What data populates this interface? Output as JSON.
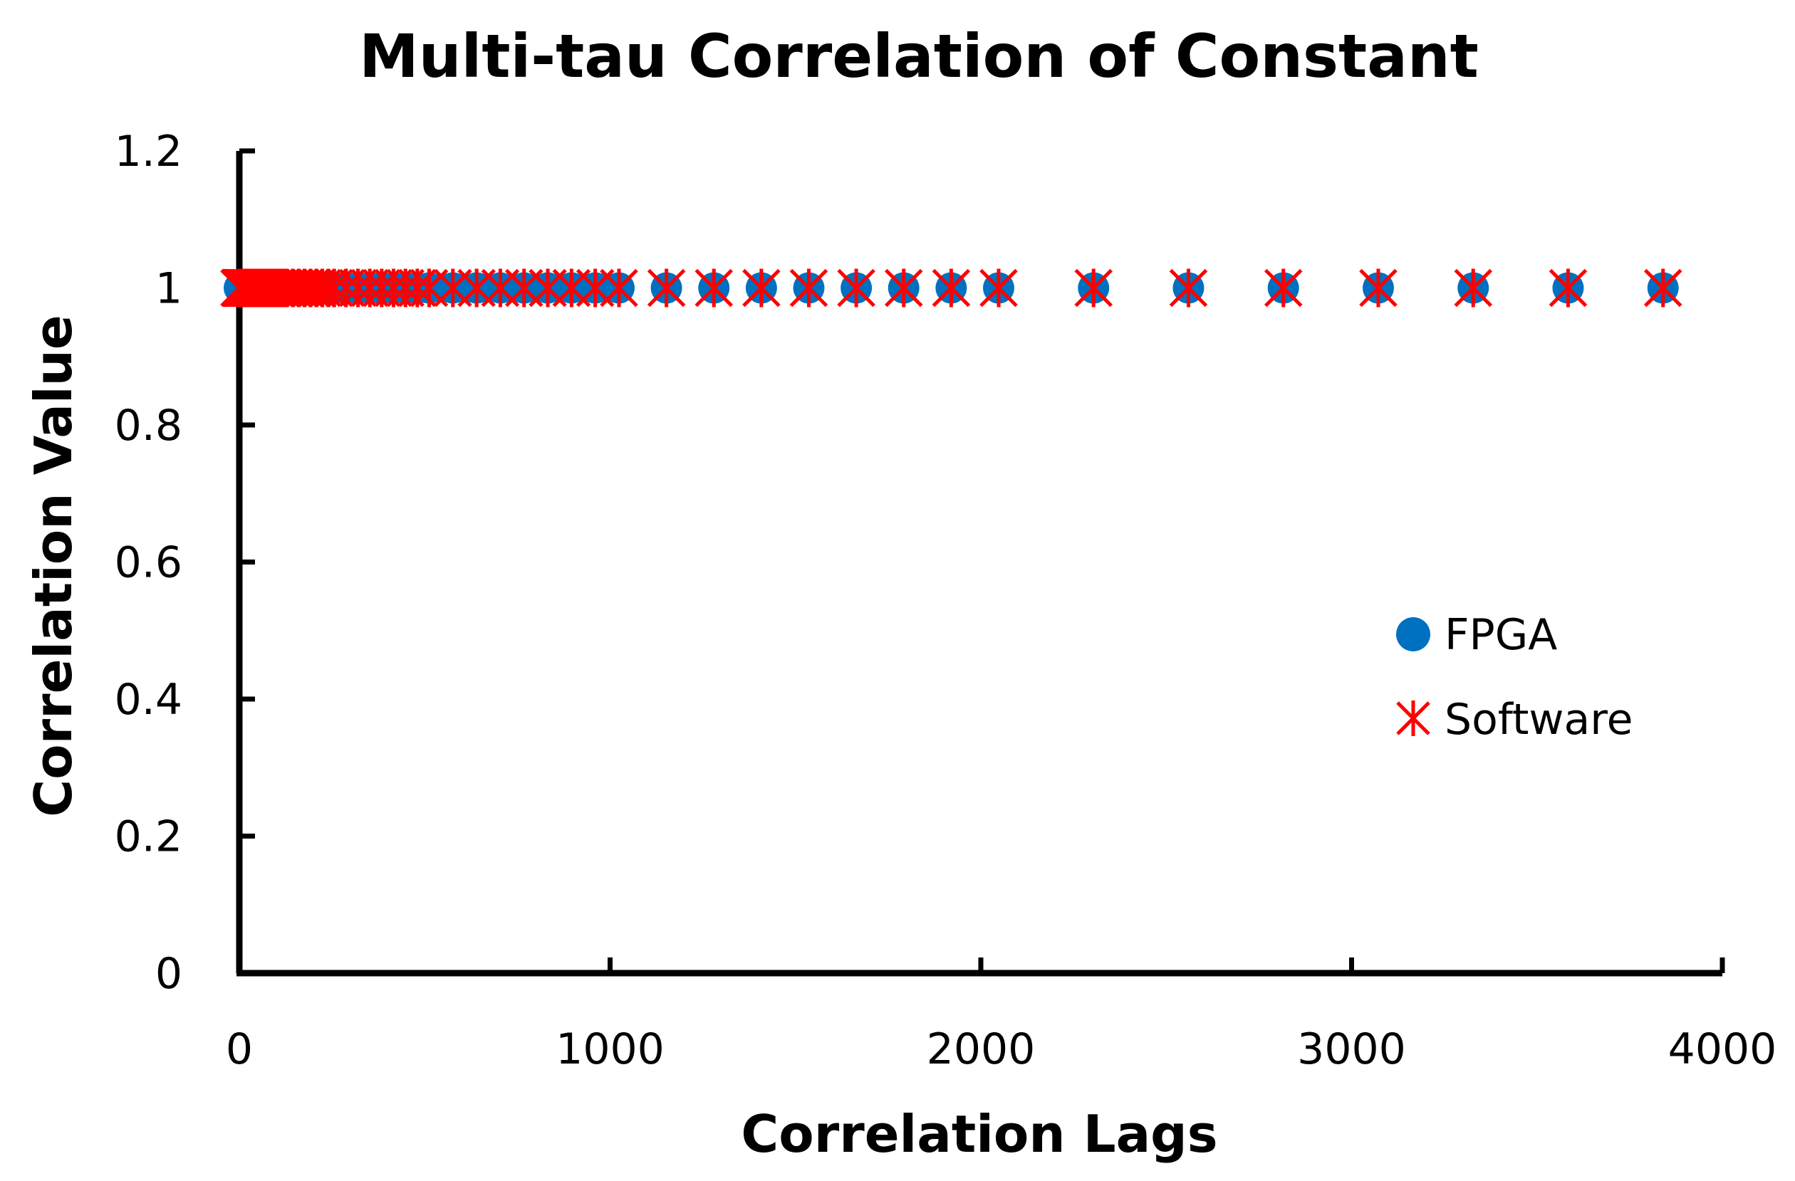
{
  "chart_data": {
    "type": "scatter",
    "title": "Multi-tau Correlation of Constant",
    "xlabel": "Correlation Lags",
    "ylabel": "Correlation Value",
    "xlim": [
      0,
      4000
    ],
    "ylim": [
      0,
      1.2
    ],
    "x_ticks": [
      0,
      1000,
      2000,
      3000,
      4000
    ],
    "y_ticks": [
      0,
      0.2,
      0.4,
      0.6,
      0.8,
      1,
      1.2
    ],
    "x_tick_labels": [
      "0",
      "1000",
      "2000",
      "3000",
      "4000"
    ],
    "y_tick_labels": [
      "0",
      "0.2",
      "0.4",
      "0.6",
      "0.8",
      "1",
      "1.2"
    ],
    "grid": false,
    "legend_position": "right-middle",
    "series": [
      {
        "name": "FPGA",
        "marker": "circle",
        "color": "#0070C0",
        "x": [
          0,
          1,
          2,
          3,
          4,
          5,
          6,
          7,
          8,
          9,
          10,
          11,
          12,
          13,
          14,
          15,
          16,
          18,
          20,
          22,
          24,
          26,
          28,
          30,
          32,
          36,
          40,
          44,
          48,
          52,
          56,
          60,
          64,
          72,
          80,
          88,
          96,
          104,
          112,
          120,
          128,
          144,
          160,
          176,
          192,
          208,
          224,
          240,
          256,
          288,
          320,
          352,
          384,
          416,
          448,
          480,
          512,
          576,
          640,
          704,
          768,
          832,
          896,
          960,
          1024,
          1152,
          1280,
          1408,
          1536,
          1664,
          1792,
          1920,
          2048,
          2304,
          2560,
          2816,
          3072,
          3328,
          3584,
          3840
        ],
        "y": [
          1,
          1,
          1,
          1,
          1,
          1,
          1,
          1,
          1,
          1,
          1,
          1,
          1,
          1,
          1,
          1,
          1,
          1,
          1,
          1,
          1,
          1,
          1,
          1,
          1,
          1,
          1,
          1,
          1,
          1,
          1,
          1,
          1,
          1,
          1,
          1,
          1,
          1,
          1,
          1,
          1,
          1,
          1,
          1,
          1,
          1,
          1,
          1,
          1,
          1,
          1,
          1,
          1,
          1,
          1,
          1,
          1,
          1,
          1,
          1,
          1,
          1,
          1,
          1,
          1,
          1,
          1,
          1,
          1,
          1,
          1,
          1,
          1,
          1,
          1,
          1,
          1,
          1,
          1,
          1
        ]
      },
      {
        "name": "Software",
        "marker": "asterisk",
        "color": "#FF0000",
        "x": [
          0,
          1,
          2,
          3,
          4,
          5,
          6,
          7,
          8,
          9,
          10,
          11,
          12,
          13,
          14,
          15,
          16,
          18,
          20,
          22,
          24,
          26,
          28,
          30,
          32,
          36,
          40,
          44,
          48,
          52,
          56,
          60,
          64,
          72,
          80,
          88,
          96,
          104,
          112,
          120,
          128,
          144,
          160,
          176,
          192,
          208,
          224,
          240,
          256,
          288,
          320,
          352,
          384,
          416,
          448,
          480,
          512,
          576,
          640,
          704,
          768,
          832,
          896,
          960,
          1024,
          1152,
          1280,
          1408,
          1536,
          1664,
          1792,
          1920,
          2048,
          2304,
          2560,
          2816,
          3072,
          3328,
          3584,
          3840
        ],
        "y": [
          1,
          1,
          1,
          1,
          1,
          1,
          1,
          1,
          1,
          1,
          1,
          1,
          1,
          1,
          1,
          1,
          1,
          1,
          1,
          1,
          1,
          1,
          1,
          1,
          1,
          1,
          1,
          1,
          1,
          1,
          1,
          1,
          1,
          1,
          1,
          1,
          1,
          1,
          1,
          1,
          1,
          1,
          1,
          1,
          1,
          1,
          1,
          1,
          1,
          1,
          1,
          1,
          1,
          1,
          1,
          1,
          1,
          1,
          1,
          1,
          1,
          1,
          1,
          1,
          1,
          1,
          1,
          1,
          1,
          1,
          1,
          1,
          1,
          1,
          1,
          1,
          1,
          1,
          1,
          1
        ]
      }
    ]
  }
}
